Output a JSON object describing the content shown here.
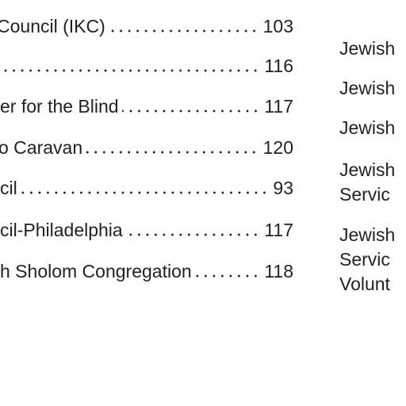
{
  "left_column": {
    "entries": [
      {
        "text": "Council (IKC)",
        "page": 103
      },
      {
        "page": 116
      },
      {
        "text": "er for the Blind",
        "page": 117
      },
      {
        "text": "o Caravan",
        "page": 120
      },
      {
        "text": "cil",
        "page": 93
      },
      {
        "text": "cil-Philadelphia",
        "page": 117
      },
      {
        "text": "h Sholom Congregation",
        "page": 118
      }
    ]
  },
  "right_column": {
    "entries": [
      {
        "lines": [
          "Jewish"
        ]
      },
      {
        "lines": [
          "Jewish"
        ]
      },
      {
        "lines": [
          "Jewish"
        ]
      },
      {
        "lines": [
          "Jewish",
          "Servic"
        ]
      },
      {
        "lines": [
          "Jewish",
          "Servic",
          "Volunt"
        ]
      }
    ]
  }
}
